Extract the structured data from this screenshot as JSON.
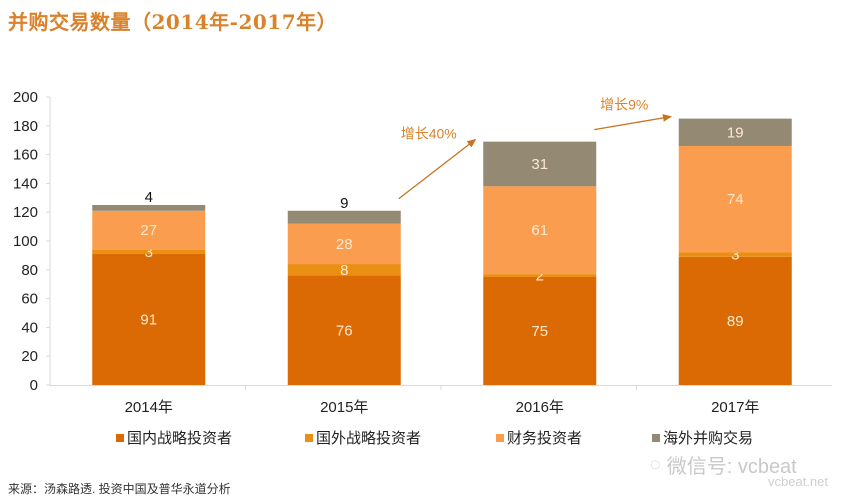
{
  "title": "并购交易数量（2014年-2017年）",
  "chart_data": {
    "type": "bar",
    "stacked": true,
    "title": "并购交易数量（2014年-2017年）",
    "xlabel": "",
    "ylabel": "",
    "ylim": [
      0,
      200
    ],
    "yticks": [
      0,
      20,
      40,
      60,
      80,
      100,
      120,
      140,
      160,
      180,
      200
    ],
    "grid": false,
    "legend_position": "bottom",
    "categories": [
      "2014年",
      "2015年",
      "2016年",
      "2017年"
    ],
    "series": [
      {
        "name": "国内战略投资者",
        "color": "#dc6a04",
        "values": [
          91,
          76,
          75,
          89
        ]
      },
      {
        "name": "国外战略投资者",
        "color": "#ea8f12",
        "values": [
          3,
          8,
          2,
          3
        ]
      },
      {
        "name": "财务投资者",
        "color": "#fa9d4e",
        "values": [
          27,
          28,
          61,
          74
        ]
      },
      {
        "name": "海外并购交易",
        "color": "#948a73",
        "values": [
          4,
          9,
          31,
          19
        ]
      }
    ],
    "annotations": [
      {
        "text": "增长40%",
        "from_category": "2015年",
        "to_category": "2016年"
      },
      {
        "text": "增长9%",
        "from_category": "2016年",
        "to_category": "2017年"
      }
    ]
  },
  "legend": [
    {
      "label": "国内战略投资者",
      "color": "#dc6a04"
    },
    {
      "label": "国外战略投资者",
      "color": "#ea8f12"
    },
    {
      "label": "财务投资者",
      "color": "#fa9d4e"
    },
    {
      "label": "海外并购交易",
      "color": "#948a73"
    }
  ],
  "source": "来源：汤森路透. 投资中国及普华永道分析",
  "watermark": {
    "text": "微信号: vcbeat",
    "sub": "vcbeat.net"
  }
}
